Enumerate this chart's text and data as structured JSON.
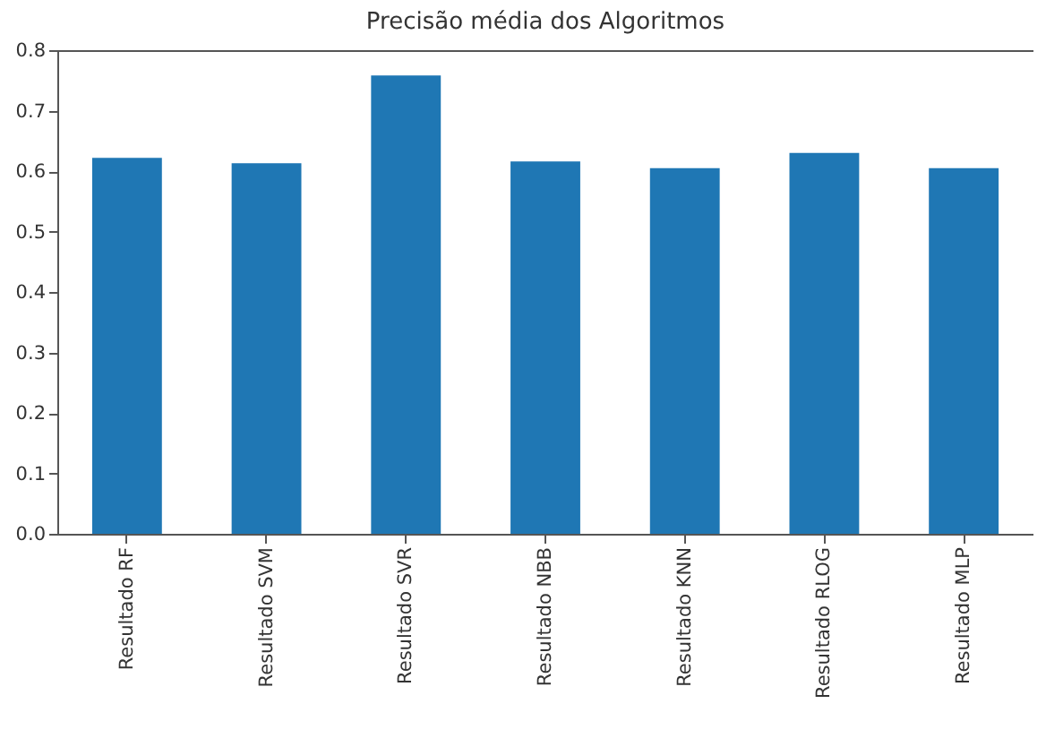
{
  "chart_data": {
    "type": "bar",
    "title": "Precisão média dos Algoritmos",
    "categories": [
      "Resultado RF",
      "Resultado SVM",
      "Resultado SVR",
      "Resultado NBB",
      "Resultado KNN",
      "Resultado RLOG",
      "Resultado MLP"
    ],
    "values": [
      0.622,
      0.613,
      0.758,
      0.616,
      0.605,
      0.63,
      0.605
    ],
    "color": "#1f77b4",
    "ylim": [
      0,
      0.8
    ],
    "yticks": [
      {
        "value": 0,
        "label": "0.0"
      },
      0.1,
      0.2,
      0.3,
      0.4,
      0.5,
      0.6,
      0.7,
      0.8
    ],
    "grid": false
  }
}
